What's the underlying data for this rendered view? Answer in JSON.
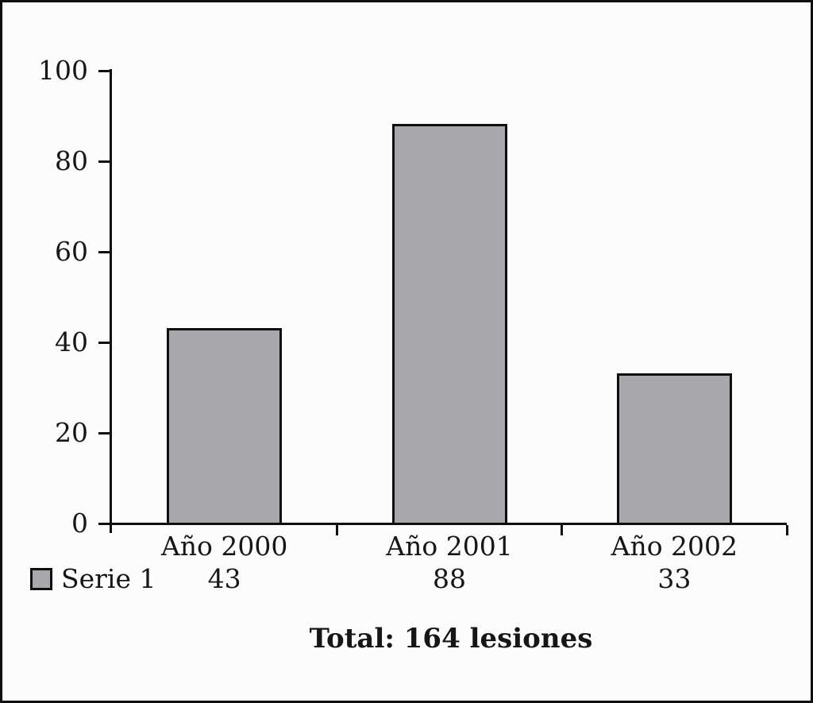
{
  "figure": {
    "background_color": "#fcfcfc",
    "border_color": "#0f0f0f"
  },
  "legend": {
    "label": "Serie 1",
    "swatch_color": "#a9a9ad",
    "swatch_border_color": "#0f0f0f"
  },
  "footer": {
    "total_label": "Total: 164 lesiones"
  },
  "chart_data": {
    "type": "bar",
    "title": "",
    "xlabel": "",
    "ylabel": "",
    "categories": [
      "Año 2000",
      "Año 2001",
      "Año 2002"
    ],
    "series": [
      {
        "name": "Serie 1",
        "values": [
          43,
          88,
          33
        ]
      }
    ],
    "value_labels": [
      "43",
      "88",
      "33"
    ],
    "ylim": [
      0,
      100
    ],
    "yticks": [
      0,
      20,
      40,
      60,
      80,
      100
    ],
    "grid": false,
    "legend_position": "bottom-left",
    "bar_color": "#a9a9ad",
    "bar_border_color": "#0f0f0f",
    "axis_color": "#0f0f0f",
    "annotation": "Total: 164 lesiones",
    "total_value": 164
  }
}
